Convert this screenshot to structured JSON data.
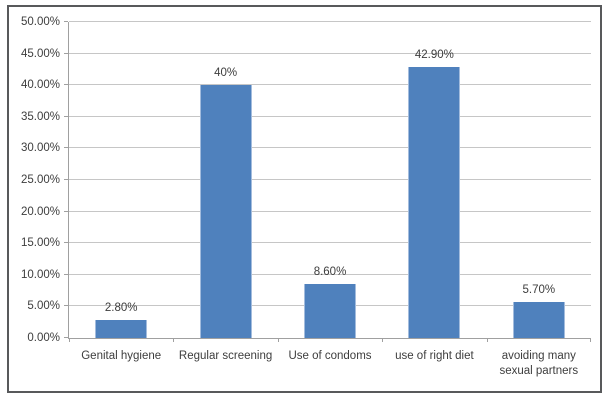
{
  "chart_data": {
    "type": "bar",
    "title": "",
    "xlabel": "",
    "ylabel": "",
    "categories": [
      "Genital hygiene",
      "Regular screening",
      "Use of condoms",
      "use of right diet",
      "avoiding many sexual partners"
    ],
    "values": [
      2.8,
      40,
      8.6,
      42.9,
      5.7
    ],
    "data_labels": [
      "2.80%",
      "40%",
      "8.60%",
      "42.90%",
      "5.70%"
    ],
    "ylim": [
      0,
      50
    ],
    "ytick_step": 5,
    "ytick_labels": [
      "0.00%",
      "5.00%",
      "10.00%",
      "15.00%",
      "20.00%",
      "25.00%",
      "30.00%",
      "35.00%",
      "40.00%",
      "45.00%",
      "50.00%"
    ],
    "grid": true,
    "legend": "none",
    "colors": {
      "bar_fill": "#4f81bd",
      "bar_edge": "#a3bcdd",
      "gridline": "#c6c6c6",
      "axis": "#a0a0a0",
      "text": "#3d3d3d",
      "frame_border": "#58595b",
      "background": "#ffffff"
    }
  }
}
